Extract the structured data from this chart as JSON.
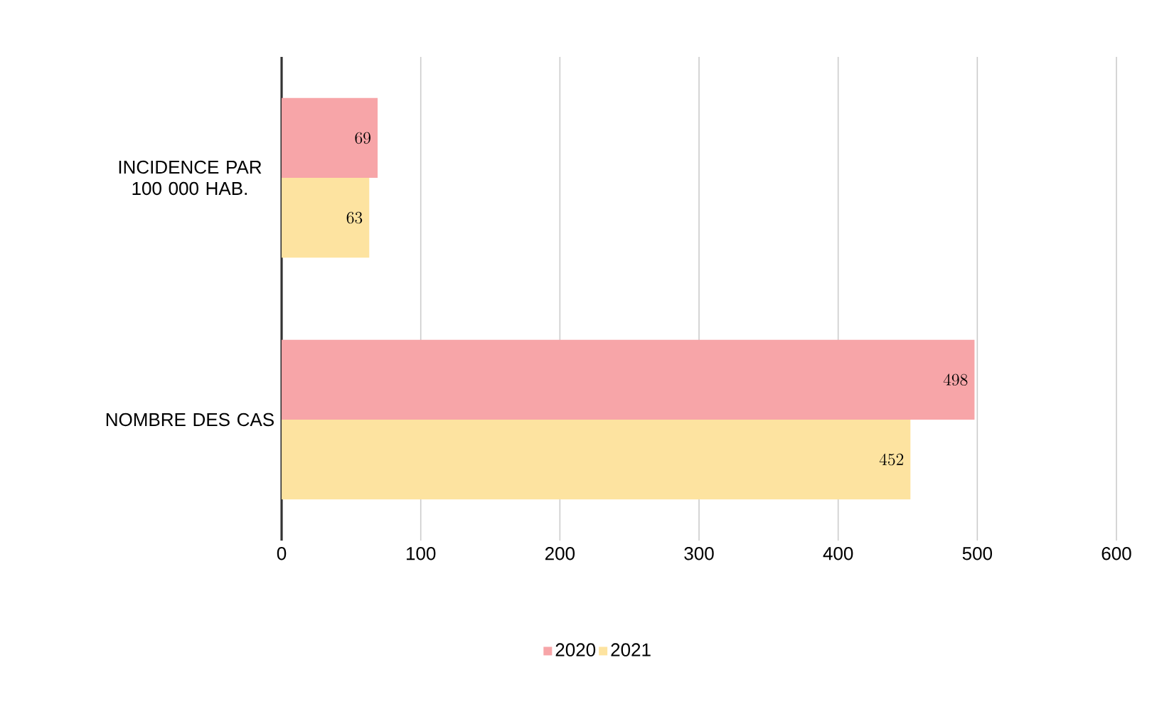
{
  "chart_data": {
    "type": "bar",
    "orientation": "horizontal",
    "categories": [
      "INCIDENCE PAR 100 000 HAB.",
      "NOMBRE DES CAS"
    ],
    "series": [
      {
        "name": "2020",
        "color": "#f7a5a8",
        "values": [
          69,
          498
        ]
      },
      {
        "name": "2021",
        "color": "#fde3a0",
        "values": [
          63,
          452
        ]
      }
    ],
    "xlim": [
      0,
      600
    ],
    "xticks": [
      0,
      100,
      200,
      300,
      400,
      500,
      600
    ],
    "grid": "x",
    "legend": "bottom",
    "data_labels": true
  }
}
